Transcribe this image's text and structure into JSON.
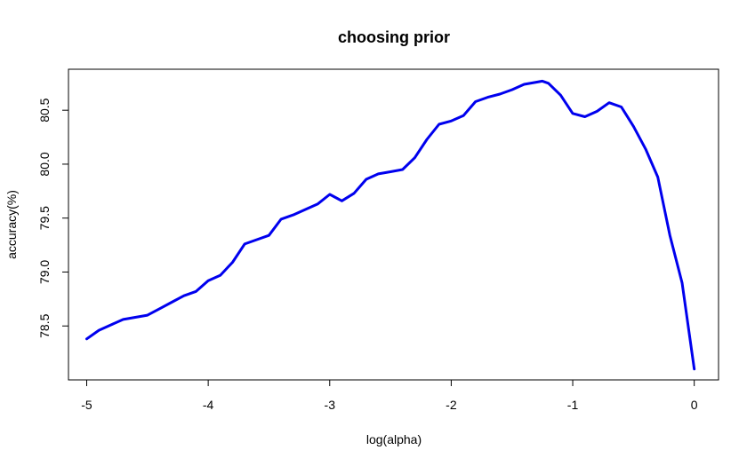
{
  "chart_data": {
    "type": "line",
    "title": "choosing prior",
    "xlabel": "log(alpha)",
    "ylabel": "accuracy(%)",
    "xlim": [
      -5.15,
      0.2
    ],
    "ylim": [
      78.0,
      80.88
    ],
    "xticks": [
      -5,
      -4,
      -3,
      -2,
      -1,
      0
    ],
    "xtick_labels": [
      "-5",
      "-4",
      "-3",
      "-2",
      "-1",
      "0"
    ],
    "yticks": [
      78.5,
      79.0,
      79.5,
      80.0,
      80.5
    ],
    "ytick_labels": [
      "78.5",
      "79.0",
      "79.5",
      "80.0",
      "80.5"
    ],
    "line_color": "#0000ee",
    "grid": false,
    "series": [
      {
        "x": [
          -5.0,
          -4.9,
          -4.8,
          -4.7,
          -4.6,
          -4.5,
          -4.4,
          -4.3,
          -4.2,
          -4.1,
          -4.0,
          -3.9,
          -3.8,
          -3.7,
          -3.6,
          -3.5,
          -3.4,
          -3.3,
          -3.2,
          -3.1,
          -3.0,
          -2.9,
          -2.8,
          -2.7,
          -2.6,
          -2.5,
          -2.4,
          -2.3,
          -2.2,
          -2.1,
          -2.0,
          -1.9,
          -1.8,
          -1.7,
          -1.6,
          -1.5,
          -1.4,
          -1.3,
          -1.25,
          -1.2,
          -1.1,
          -1.0,
          -0.9,
          -0.8,
          -0.7,
          -0.6,
          -0.5,
          -0.4,
          -0.3,
          -0.2,
          -0.1,
          0.0
        ],
        "y": [
          78.38,
          78.46,
          78.51,
          78.56,
          78.58,
          78.6,
          78.66,
          78.72,
          78.78,
          78.82,
          78.92,
          78.97,
          79.09,
          79.26,
          79.3,
          79.34,
          79.49,
          79.53,
          79.58,
          79.63,
          79.72,
          79.66,
          79.73,
          79.86,
          79.91,
          79.93,
          79.95,
          80.06,
          80.23,
          80.37,
          80.4,
          80.45,
          80.58,
          80.62,
          80.65,
          80.69,
          80.74,
          80.76,
          80.77,
          80.75,
          80.64,
          80.47,
          80.44,
          80.49,
          80.57,
          80.53,
          80.35,
          80.14,
          79.88,
          79.34,
          78.9,
          78.1
        ]
      }
    ]
  }
}
